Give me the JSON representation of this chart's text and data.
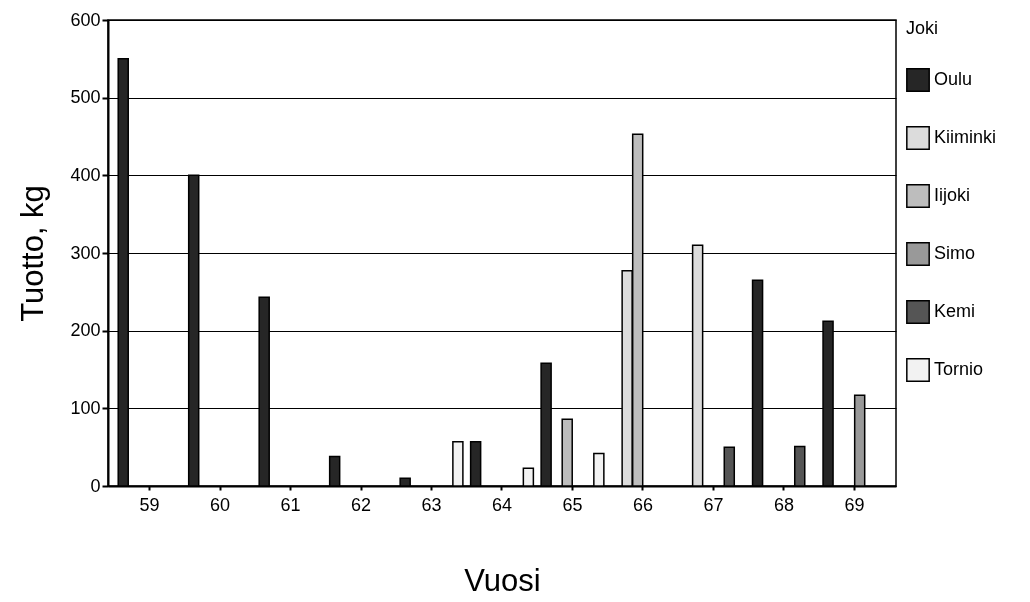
{
  "chart_data": {
    "type": "bar",
    "xlabel": "Vuosi",
    "ylabel": "Tuotto, kg",
    "legend_title": "Joki",
    "legend": "right",
    "grid": "y",
    "categories": [
      "59",
      "60",
      "61",
      "62",
      "63",
      "64",
      "65",
      "66",
      "67",
      "68",
      "69"
    ],
    "ylim": [
      0,
      600
    ],
    "yticks": [
      0,
      100,
      200,
      300,
      400,
      500,
      600
    ],
    "series": [
      {
        "name": "Oulu",
        "color": "#262626",
        "values": [
          550,
          400,
          243,
          38,
          10,
          57,
          158,
          null,
          null,
          265,
          212
        ]
      },
      {
        "name": "Kiiminki",
        "color": "#dcdcdc",
        "values": [
          null,
          null,
          null,
          null,
          null,
          null,
          null,
          277,
          310,
          null,
          null
        ]
      },
      {
        "name": "Iijoki",
        "color": "#bdbdbd",
        "values": [
          null,
          null,
          null,
          null,
          null,
          null,
          86,
          453,
          null,
          null,
          null
        ]
      },
      {
        "name": "Simo",
        "color": "#999999",
        "values": [
          null,
          null,
          null,
          null,
          null,
          null,
          null,
          null,
          null,
          null,
          117
        ]
      },
      {
        "name": "Kemi",
        "color": "#555555",
        "values": [
          null,
          null,
          null,
          null,
          null,
          null,
          null,
          null,
          50,
          51,
          null
        ]
      },
      {
        "name": "Tornio",
        "color": "#f2f2f2",
        "values": [
          null,
          null,
          null,
          null,
          57,
          23,
          42,
          null,
          null,
          null,
          null
        ]
      }
    ]
  }
}
